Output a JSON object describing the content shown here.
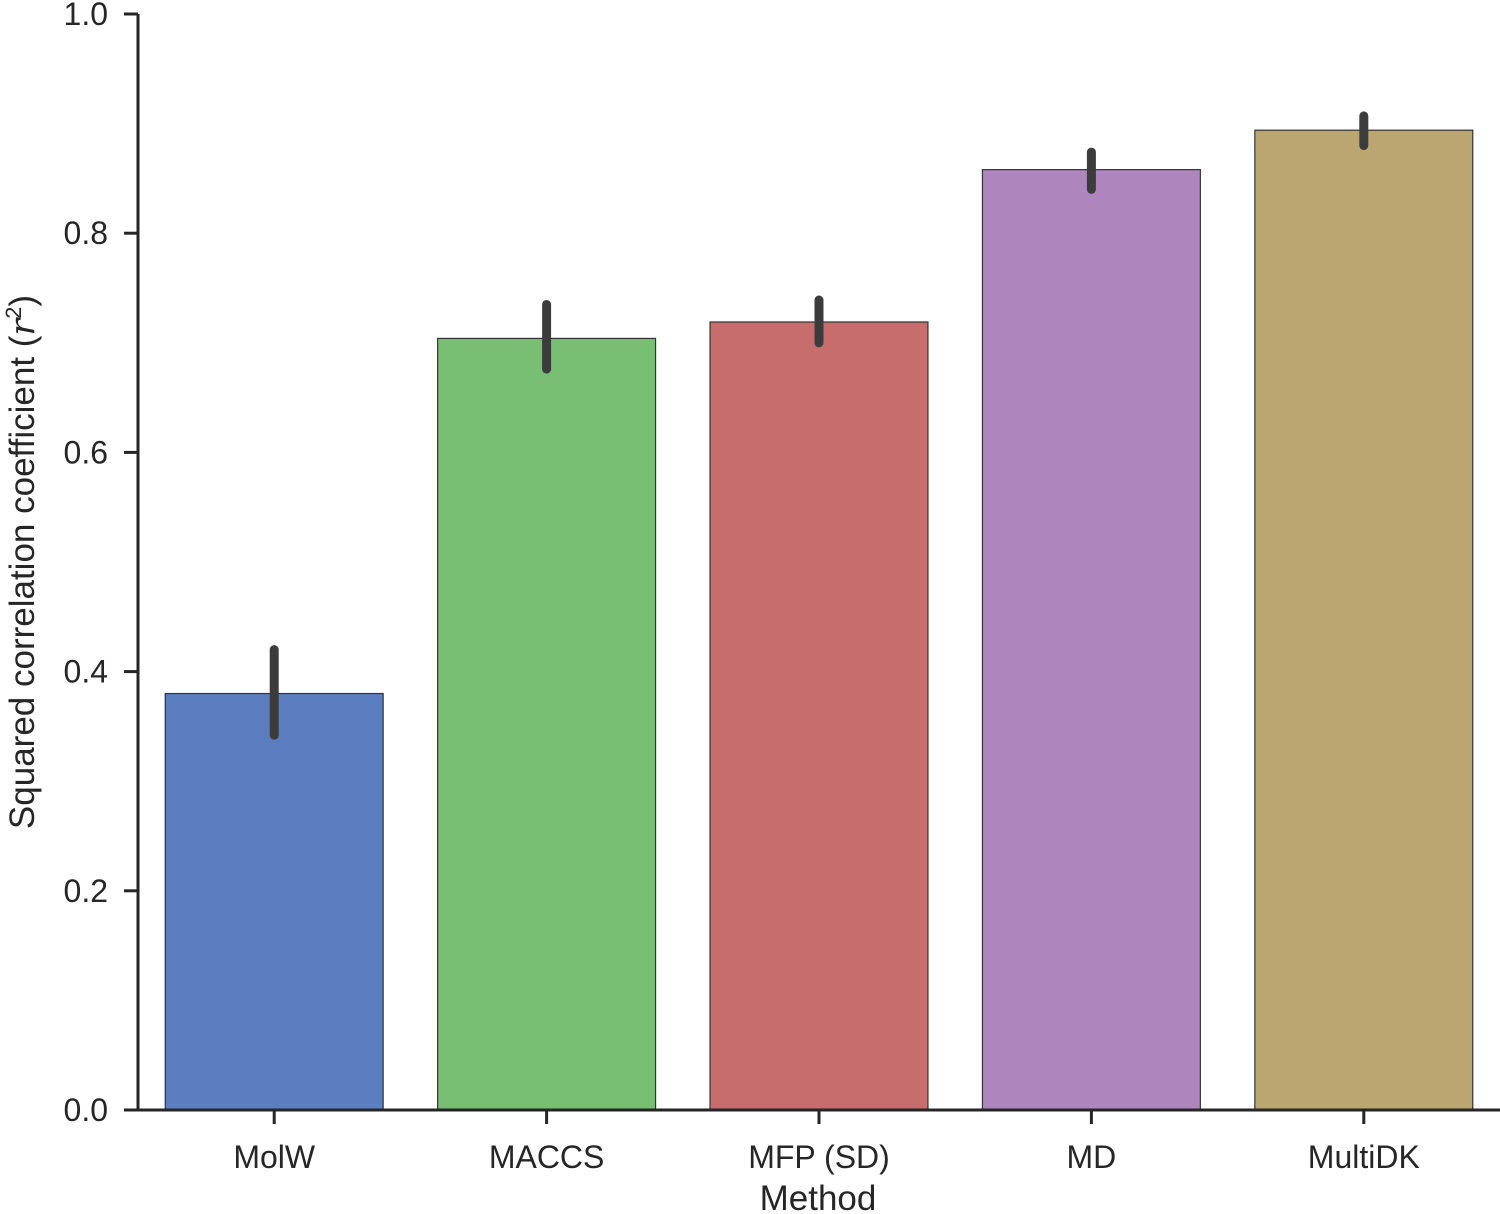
{
  "chart_data": {
    "type": "bar",
    "categories": [
      "MolW",
      "MACCS",
      "MFP (SD)",
      "MD",
      "MultiDK"
    ],
    "values": [
      0.38,
      0.704,
      0.719,
      0.858,
      0.894
    ],
    "error_low": [
      0.342,
      0.676,
      0.7,
      0.84,
      0.88
    ],
    "error_high": [
      0.42,
      0.735,
      0.739,
      0.874,
      0.907
    ],
    "colors": [
      "#5b7ec1",
      "#78bf73",
      "#c76d6d",
      "#ae86bd",
      "#bba672"
    ],
    "xlabel": "Method",
    "ylabel": "Squared correlation coefficient (",
    "ylabel_symbol": "r",
    "ylabel_superscript": "2",
    "ylabel_close": ")",
    "ylim": [
      0.0,
      1.0
    ],
    "yticks": [
      "0.0",
      "0.2",
      "0.4",
      "0.6",
      "0.8",
      "1.0"
    ],
    "grid": false
  }
}
